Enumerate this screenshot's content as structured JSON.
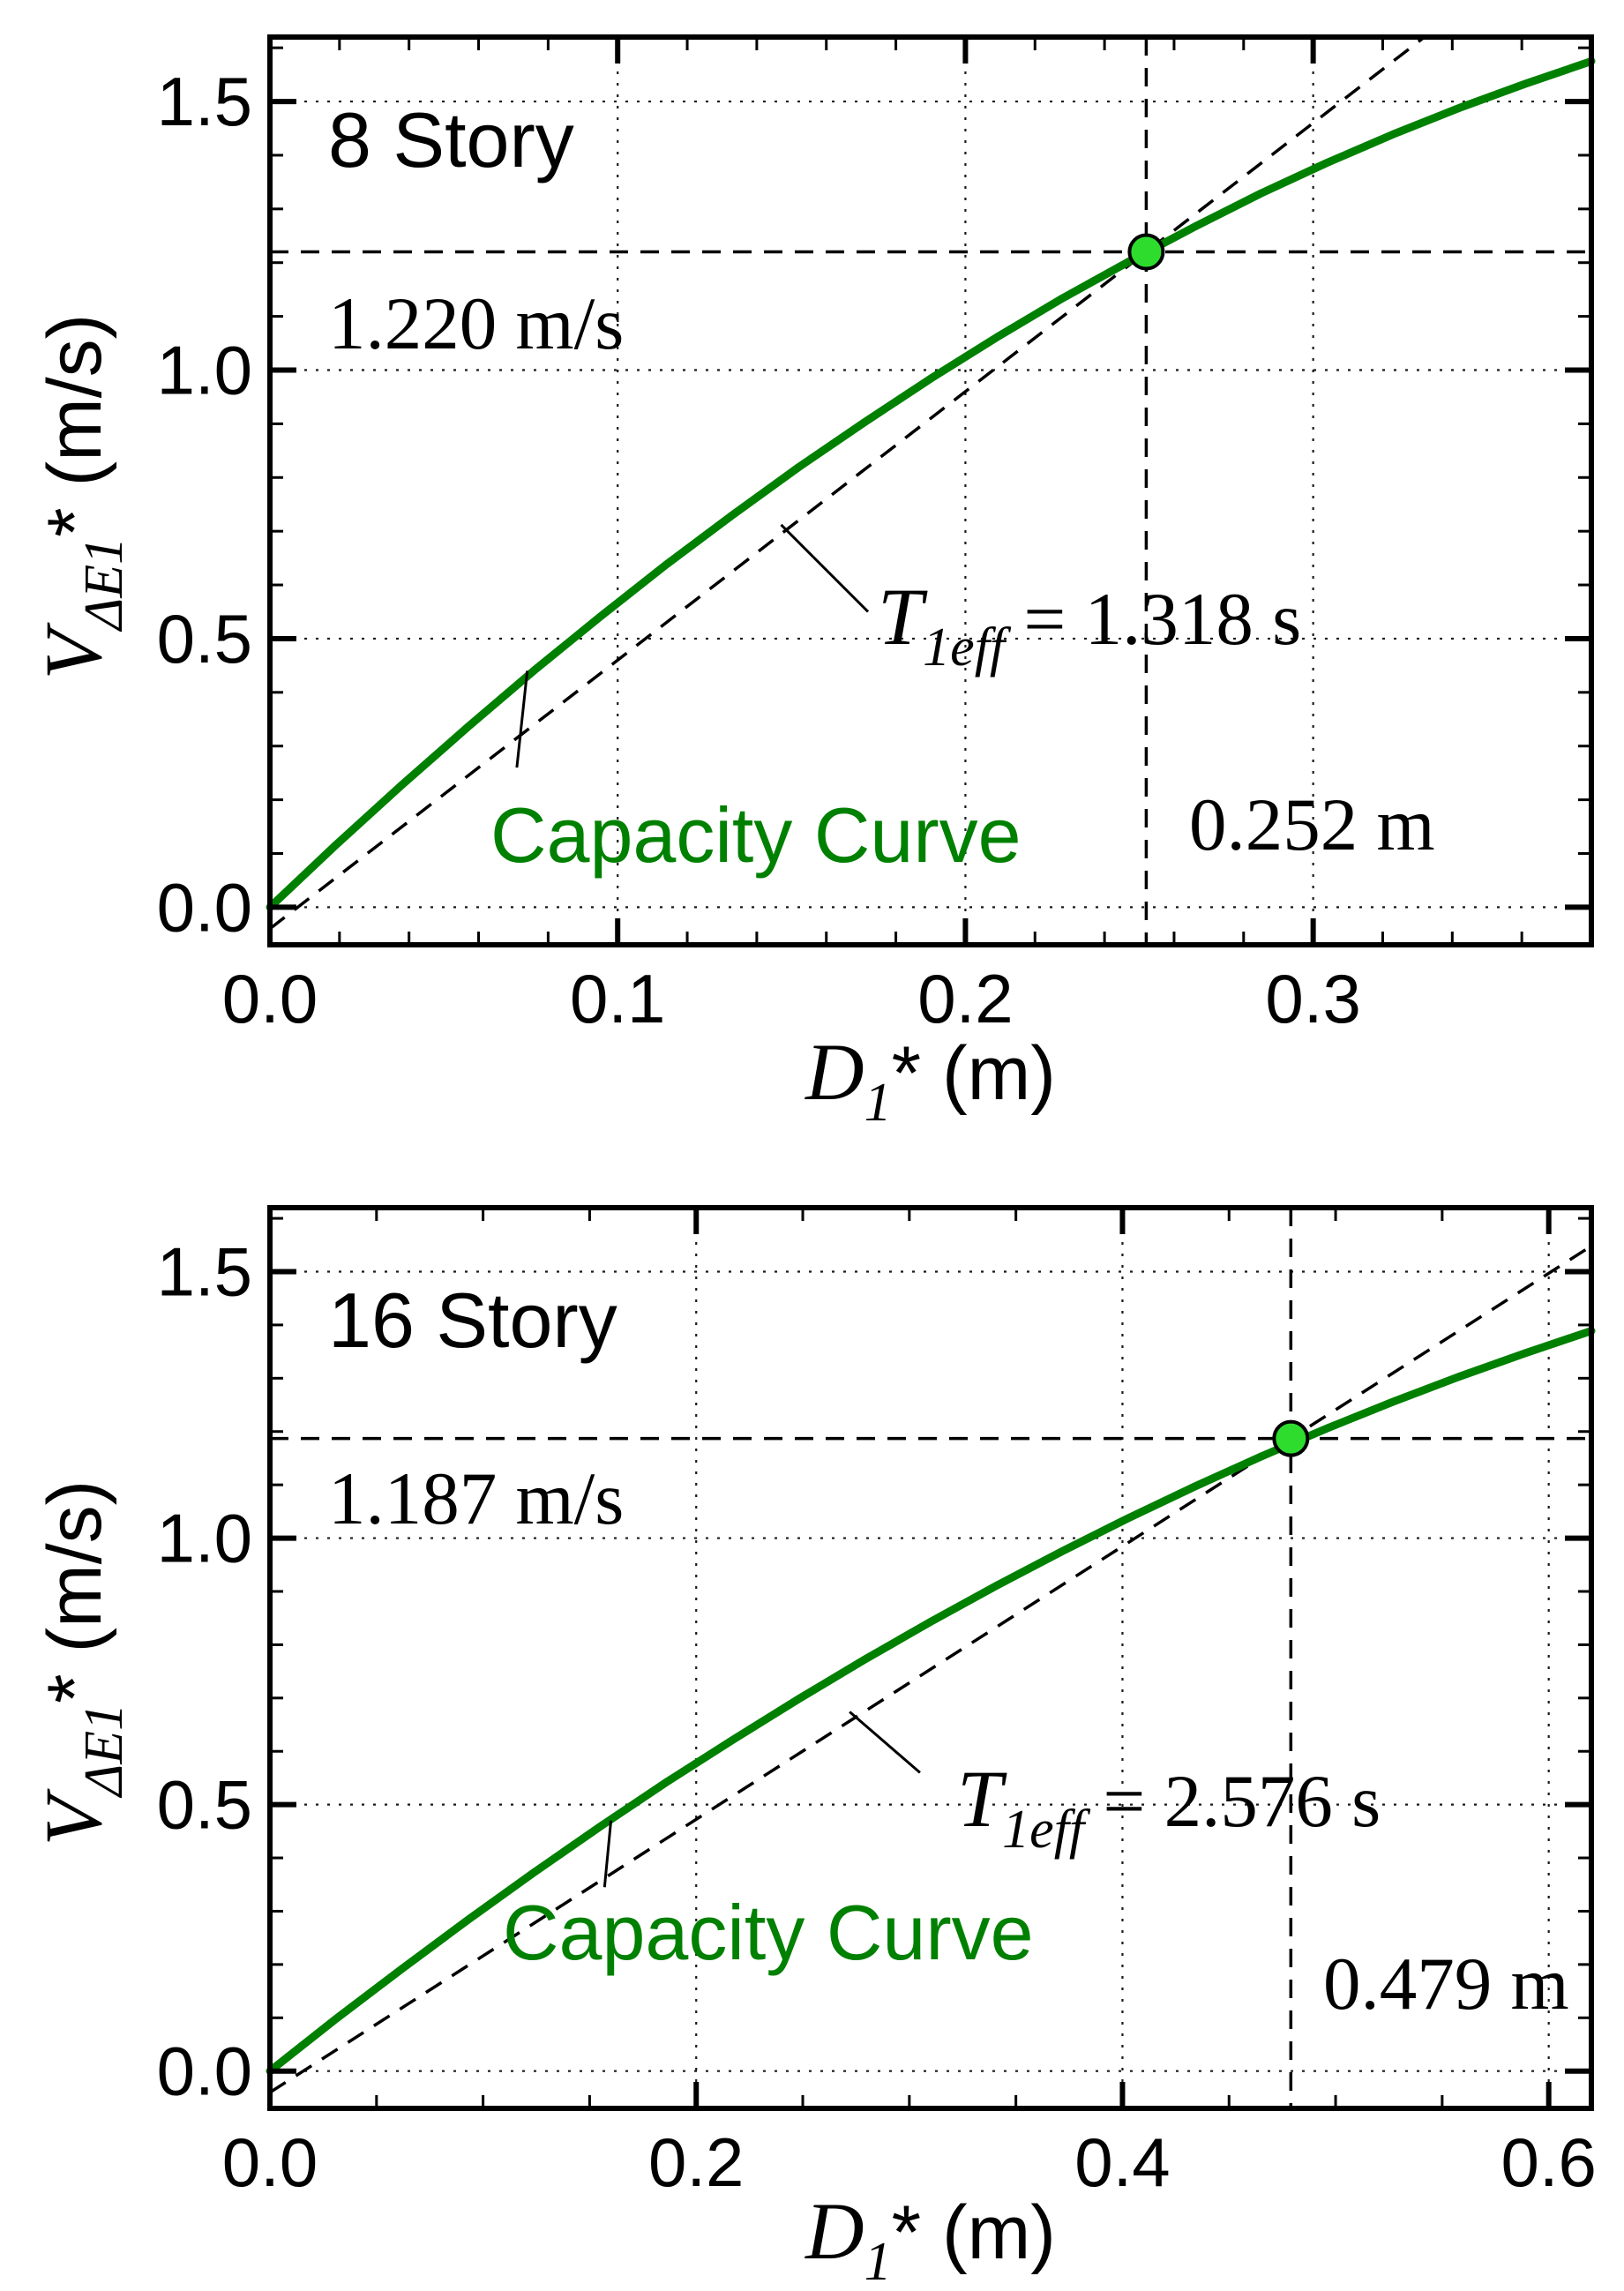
{
  "figure": {
    "background": "#ffffff",
    "ink": "#000000"
  },
  "chart_data": [
    {
      "type": "line",
      "name": "capacity-curve-8-story",
      "title": "8 Story",
      "xlabel": {
        "sym": "D",
        "sub": "1",
        "rest": "* (m)"
      },
      "ylabel": {
        "sym": "V",
        "sub": "ΔE1",
        "rest": "* (m/s)"
      },
      "xlim": [
        0,
        0.38
      ],
      "ylim": [
        -0.07,
        1.62
      ],
      "x_major_ticks": [
        0,
        0.1,
        0.2,
        0.3
      ],
      "x_tick_labels": [
        "0.0",
        "0.1",
        "0.2",
        "0.3"
      ],
      "x_minor_step": 0.02,
      "y_major_ticks": [
        0,
        0.5,
        1,
        1.5
      ],
      "y_tick_labels": [
        "0.0",
        "0.5",
        "1.0",
        "1.5"
      ],
      "y_minor_step": 0.1,
      "grid_x": [
        0.1,
        0.2,
        0.3
      ],
      "grid_y": [
        0,
        0.5,
        1,
        1.5
      ],
      "grid_on": true,
      "legend": "none",
      "capacity_curve": {
        "color": "#008000",
        "x": [
          0,
          0.019,
          0.038,
          0.057,
          0.076,
          0.095,
          0.114,
          0.133,
          0.152,
          0.171,
          0.19,
          0.209,
          0.228,
          0.247,
          0.266,
          0.285,
          0.304,
          0.323,
          0.342,
          0.361,
          0.38
        ],
        "y": [
          0,
          0.116,
          0.228,
          0.336,
          0.441,
          0.541,
          0.638,
          0.73,
          0.819,
          0.903,
          0.984,
          1.061,
          1.134,
          1.202,
          1.267,
          1.329,
          1.386,
          1.439,
          1.488,
          1.533,
          1.575
        ]
      },
      "performance_point": {
        "x": 0.252,
        "y": 1.22,
        "color": "#2edc2e"
      },
      "period": {
        "sym": "T",
        "sub": "1eff",
        "rest": " = 1.318 s",
        "value_s": 1.318,
        "intercept": -0.04
      },
      "labels": {
        "velocity": "1.220 m/s",
        "displacement": "0.252 m",
        "curve": "Capacity Curve"
      },
      "leaders": [
        {
          "x1": 0.147,
          "y1": 0.712,
          "x2": 0.172,
          "y2": 0.55
        },
        {
          "x1": 0.074,
          "y1": 0.44,
          "x2": 0.071,
          "y2": 0.26
        }
      ]
    },
    {
      "type": "line",
      "name": "capacity-curve-16-story",
      "title": "16 Story",
      "xlabel": {
        "sym": "D",
        "sub": "1",
        "rest": "* (m)"
      },
      "ylabel": {
        "sym": "V",
        "sub": "ΔE1",
        "rest": "* (m/s)"
      },
      "xlim": [
        0,
        0.62
      ],
      "ylim": [
        -0.07,
        1.62
      ],
      "x_major_ticks": [
        0,
        0.2,
        0.4,
        0.6
      ],
      "x_tick_labels": [
        "0.0",
        "0.2",
        "0.4",
        "0.6"
      ],
      "x_minor_step": 0.05,
      "y_major_ticks": [
        0,
        0.5,
        1,
        1.5
      ],
      "y_tick_labels": [
        "0.0",
        "0.5",
        "1.0",
        "1.5"
      ],
      "y_minor_step": 0.1,
      "grid_x": [
        0.2,
        0.4,
        0.6
      ],
      "grid_y": [
        0,
        0.5,
        1,
        1.5
      ],
      "grid_on": true,
      "legend": "none",
      "capacity_curve": {
        "color": "#008000",
        "x": [
          0,
          0.031,
          0.062,
          0.093,
          0.124,
          0.155,
          0.186,
          0.217,
          0.248,
          0.279,
          0.31,
          0.341,
          0.372,
          0.403,
          0.434,
          0.465,
          0.496,
          0.527,
          0.558,
          0.589,
          0.62
        ],
        "y": [
          0,
          0.098,
          0.192,
          0.284,
          0.373,
          0.459,
          0.542,
          0.621,
          0.698,
          0.772,
          0.843,
          0.911,
          0.976,
          1.038,
          1.097,
          1.153,
          1.206,
          1.256,
          1.303,
          1.347,
          1.389
        ]
      },
      "performance_point": {
        "x": 0.479,
        "y": 1.187,
        "color": "#2edc2e"
      },
      "period": {
        "sym": "T",
        "sub": "1eff",
        "rest": " = 2.576 s",
        "value_s": 2.576,
        "intercept": -0.04
      },
      "labels": {
        "velocity": "1.187 m/s",
        "displacement": "0.479 m",
        "curve": "Capacity Curve"
      },
      "leaders": [
        {
          "x1": 0.272,
          "y1": 0.674,
          "x2": 0.305,
          "y2": 0.56
        },
        {
          "x1": 0.16,
          "y1": 0.47,
          "x2": 0.157,
          "y2": 0.345
        }
      ]
    }
  ]
}
